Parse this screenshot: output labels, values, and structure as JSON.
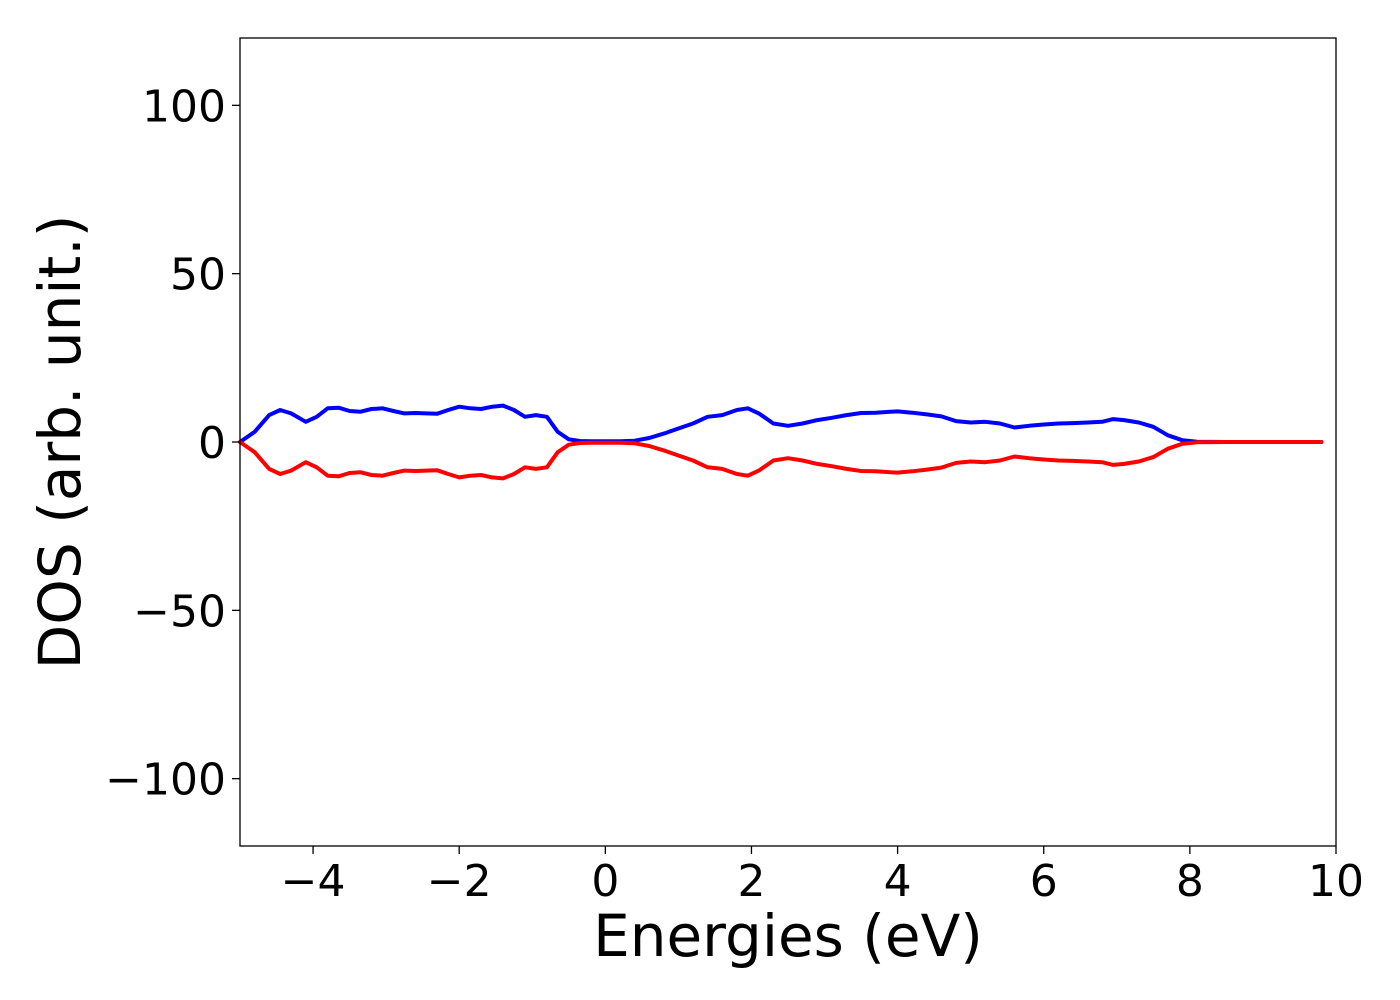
{
  "chart_data": {
    "type": "line",
    "title": "",
    "xlabel": "Energies (eV)",
    "ylabel": "DOS (arb. unit.)",
    "xlim": [
      -5,
      10
    ],
    "ylim": [
      -120,
      120
    ],
    "xticks": [
      -4,
      -2,
      0,
      2,
      4,
      6,
      8,
      10
    ],
    "xtick_labels": [
      "−4",
      "−2",
      "0",
      "2",
      "4",
      "6",
      "8",
      "10"
    ],
    "yticks": [
      100,
      50,
      0,
      -50,
      -100
    ],
    "ytick_labels": [
      "100",
      "50",
      "0",
      "−50",
      "−100"
    ],
    "grid": false,
    "legend": "none",
    "series": [
      {
        "color": "#0000ff",
        "x": [
          -5.0,
          -4.8,
          -4.6,
          -4.45,
          -4.3,
          -4.1,
          -3.95,
          -3.8,
          -3.65,
          -3.5,
          -3.35,
          -3.2,
          -3.05,
          -2.9,
          -2.75,
          -2.6,
          -2.45,
          -2.3,
          -2.15,
          -2.0,
          -1.85,
          -1.7,
          -1.55,
          -1.4,
          -1.25,
          -1.1,
          -0.95,
          -0.8,
          -0.65,
          -0.5,
          -0.35,
          -0.2,
          0.0,
          0.2,
          0.4,
          0.6,
          0.8,
          1.0,
          1.2,
          1.4,
          1.6,
          1.8,
          1.95,
          2.1,
          2.3,
          2.5,
          2.7,
          2.9,
          3.1,
          3.3,
          3.5,
          3.7,
          3.9,
          4.0,
          4.2,
          4.4,
          4.6,
          4.8,
          5.0,
          5.2,
          5.4,
          5.6,
          5.8,
          6.0,
          6.2,
          6.4,
          6.6,
          6.8,
          6.95,
          7.1,
          7.3,
          7.5,
          7.7,
          7.9,
          8.1,
          8.5,
          9.0,
          9.5,
          9.8
        ],
        "values": [
          0,
          3,
          8,
          9.5,
          8.5,
          6,
          7.5,
          10,
          10.2,
          9.2,
          9,
          9.8,
          10,
          9.2,
          8.5,
          8.6,
          8.5,
          8.4,
          9.5,
          10.5,
          10,
          9.8,
          10.5,
          10.8,
          9.5,
          7.5,
          8,
          7.5,
          3,
          0.8,
          0.3,
          0.2,
          0.2,
          0.2,
          0.4,
          1.2,
          2.5,
          4,
          5.5,
          7.5,
          8,
          9.5,
          10,
          8.5,
          5.5,
          4.8,
          5.5,
          6.5,
          7.2,
          8,
          8.6,
          8.7,
          9,
          9.1,
          8.7,
          8.2,
          7.6,
          6.2,
          5.8,
          6,
          5.5,
          4.3,
          4.8,
          5.2,
          5.5,
          5.6,
          5.8,
          6,
          6.8,
          6.5,
          5.8,
          4.5,
          2,
          0.5,
          0.1,
          0,
          0,
          0,
          0
        ]
      },
      {
        "color": "#ff0000",
        "x": [
          -5.0,
          -4.8,
          -4.6,
          -4.45,
          -4.3,
          -4.1,
          -3.95,
          -3.8,
          -3.65,
          -3.5,
          -3.35,
          -3.2,
          -3.05,
          -2.9,
          -2.75,
          -2.6,
          -2.45,
          -2.3,
          -2.15,
          -2.0,
          -1.85,
          -1.7,
          -1.55,
          -1.4,
          -1.25,
          -1.1,
          -0.95,
          -0.8,
          -0.65,
          -0.5,
          -0.35,
          -0.2,
          0.0,
          0.2,
          0.4,
          0.6,
          0.8,
          1.0,
          1.2,
          1.4,
          1.6,
          1.8,
          1.95,
          2.1,
          2.3,
          2.5,
          2.7,
          2.9,
          3.1,
          3.3,
          3.5,
          3.7,
          3.9,
          4.0,
          4.2,
          4.4,
          4.6,
          4.8,
          5.0,
          5.2,
          5.4,
          5.6,
          5.8,
          6.0,
          6.2,
          6.4,
          6.6,
          6.8,
          6.95,
          7.1,
          7.3,
          7.5,
          7.7,
          7.9,
          8.1,
          8.5,
          9.0,
          9.5,
          9.8
        ],
        "values": [
          0,
          -3,
          -8,
          -9.5,
          -8.5,
          -6,
          -7.5,
          -10,
          -10.2,
          -9.2,
          -9,
          -9.8,
          -10,
          -9.2,
          -8.5,
          -8.6,
          -8.5,
          -8.4,
          -9.5,
          -10.5,
          -10,
          -9.8,
          -10.5,
          -10.8,
          -9.5,
          -7.5,
          -8,
          -7.5,
          -3,
          -0.8,
          -0.3,
          -0.2,
          -0.2,
          -0.2,
          -0.4,
          -1.2,
          -2.5,
          -4,
          -5.5,
          -7.5,
          -8,
          -9.5,
          -10,
          -8.5,
          -5.5,
          -4.8,
          -5.5,
          -6.5,
          -7.2,
          -8,
          -8.6,
          -8.7,
          -9,
          -9.1,
          -8.7,
          -8.2,
          -7.6,
          -6.2,
          -5.8,
          -6,
          -5.5,
          -4.3,
          -4.8,
          -5.2,
          -5.5,
          -5.6,
          -5.8,
          -6,
          -6.8,
          -6.5,
          -5.8,
          -4.5,
          -2,
          -0.5,
          -0.1,
          0,
          0,
          0,
          0
        ]
      }
    ]
  }
}
